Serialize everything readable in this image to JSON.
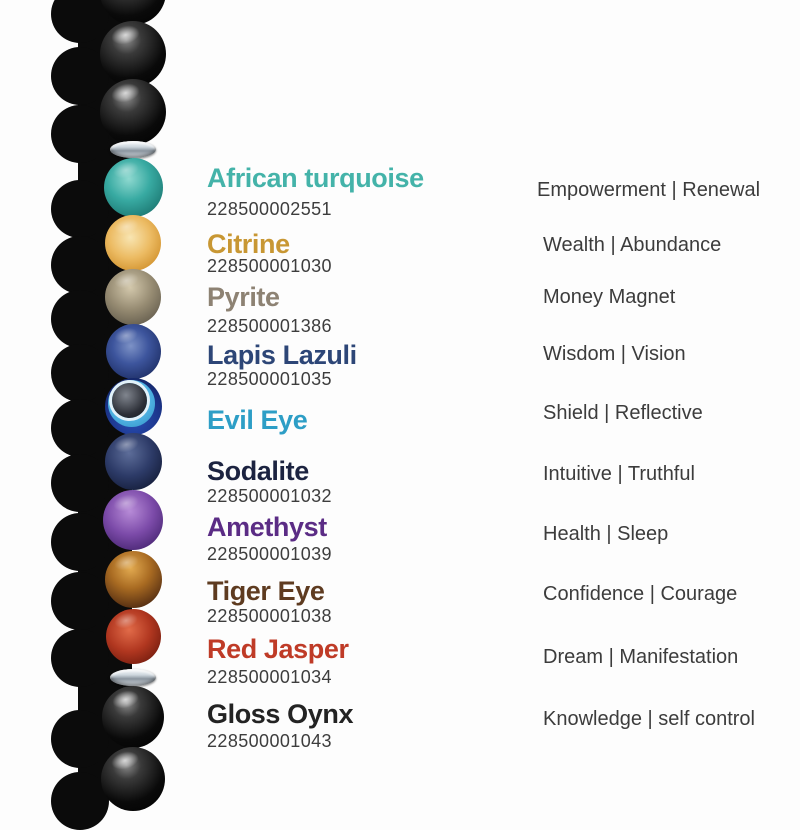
{
  "page": {
    "background_color": "#fdfdfd",
    "code_text_color": "#3d3d3d",
    "meaning_text_color": "#3c3c3c"
  },
  "stones": [
    {
      "id": "african-turquoise",
      "name": "African turquoise",
      "code": "228500002551",
      "meaning": "Empowerment | Renewal",
      "name_color": "#44b3a9"
    },
    {
      "id": "citrine",
      "name": "Citrine",
      "code": "228500001030",
      "meaning": "Wealth | Abundance",
      "name_color": "#c89733"
    },
    {
      "id": "pyrite",
      "name": "Pyrite",
      "code": "228500001386",
      "meaning": "Money Magnet",
      "name_color": "#8d8273"
    },
    {
      "id": "lapis-lazuli",
      "name": "Lapis Lazuli",
      "code": "228500001035",
      "meaning": "Wisdom | Vision",
      "name_color": "#2d4677"
    },
    {
      "id": "evil-eye",
      "name": "Evil Eye",
      "code": "",
      "meaning": "Shield | Reflective",
      "name_color": "#2d9ec6"
    },
    {
      "id": "sodalite",
      "name": "Sodalite",
      "code": "228500001032",
      "meaning": "Intuitive | Truthful",
      "name_color": "#1c2340"
    },
    {
      "id": "amethyst",
      "name": "Amethyst",
      "code": "228500001039",
      "meaning": "Health | Sleep",
      "name_color": "#5b2c85"
    },
    {
      "id": "tiger-eye",
      "name": "Tiger Eye",
      "code": "228500001038",
      "meaning": "Confidence | Courage",
      "name_color": "#5e3b20"
    },
    {
      "id": "red-jasper",
      "name": "Red Jasper",
      "code": "228500001034",
      "meaning": "Dream | Manifestation",
      "name_color": "#bf3b27"
    },
    {
      "id": "gloss-oynx",
      "name": "Gloss Oynx",
      "code": "228500001043",
      "meaning": "Knowledge | self control",
      "name_color": "#232323"
    }
  ],
  "strand": {
    "beads": [
      "black-onyx",
      "black-onyx",
      "black-onyx",
      "spacer",
      "african-turquoise",
      "citrine",
      "pyrite",
      "lapis-lazuli",
      "evil-eye",
      "sodalite",
      "amethyst",
      "tiger-eye",
      "red-jasper",
      "spacer",
      "black-onyx",
      "black-onyx"
    ]
  }
}
